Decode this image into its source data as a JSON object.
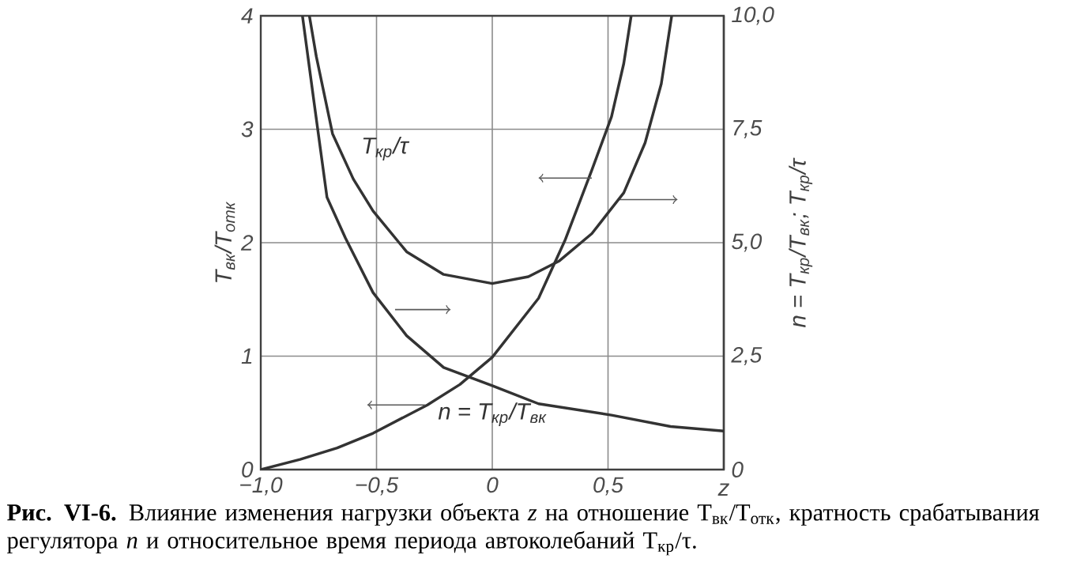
{
  "chart_data": {
    "type": "line",
    "xlabel": "z",
    "ylabel": "*T$_{вк}$/T$_{отк}$*",
    "y2label": "*n = T$_{кр}$/T$_{вк}$; T$_{кр}$/τ*",
    "xlim": [
      -1,
      1
    ],
    "xticks": [
      {
        "value": -1,
        "label": "−1,0"
      },
      {
        "value": -0.5,
        "label": "−0,5"
      },
      0,
      {
        "value": 0.5,
        "label": "0,5"
      },
      {
        "value": 1,
        "label": null
      }
    ],
    "ylim": [
      0,
      4
    ],
    "yticks": [
      0,
      1,
      2,
      3,
      4
    ],
    "y2lim": [
      0,
      10
    ],
    "y2ticks": [
      0,
      {
        "value": 2.5,
        "label": "2,5"
      },
      {
        "value": 5,
        "label": "5,0"
      },
      {
        "value": 7.5,
        "label": "7,5"
      },
      {
        "value": 10,
        "label": "10,0"
      }
    ],
    "grid": true,
    "marker": "none",
    "line_style": "solid",
    "series": [
      {
        "color": "#333333",
        "x": [
          -1,
          -0.83,
          -0.67,
          -0.515,
          -0.28,
          -0.14,
          0,
          0.2,
          0.316,
          0.43,
          0.515,
          0.568,
          0.6
        ],
        "values": [
          0,
          0.09,
          0.19,
          0.32,
          0.57,
          0.75,
          0.99,
          1.51,
          2.03,
          2.64,
          3.11,
          3.58,
          4
        ]
      },
      {
        "name": "T$_{кр}$/τ",
        "axis": "y2",
        "color": "#333333",
        "x": [
          -0.79,
          -0.76,
          -0.69,
          -0.6,
          -0.515,
          -0.37,
          -0.21,
          0,
          0.156,
          0.29,
          0.43,
          0.568,
          0.66,
          0.73,
          0.775
        ],
        "values": [
          10,
          9.1,
          7.4,
          6.4,
          5.7,
          4.8,
          4.3,
          4.1,
          4.25,
          4.6,
          5.2,
          6.1,
          7.2,
          8.5,
          10
        ]
      },
      {
        "name": "n = T$_{кр}$/T$_{вк}$",
        "axis": "y2",
        "color": "#333333",
        "x": [
          -0.82,
          -0.77,
          -0.714,
          -0.634,
          -0.515,
          -0.37,
          -0.21,
          0,
          0.2,
          0.515,
          0.77,
          1
        ],
        "values": [
          10,
          8.1,
          6,
          5.1,
          3.9,
          2.95,
          2.25,
          1.85,
          1.45,
          1.2,
          0.95,
          0.85
        ]
      }
    ],
    "annotations": [
      "**Рис. VI-6.** Влияние изменения нагрузки объекта *z* на отношение T$_{вк}$/T$_{отк}$, кратность срабатывания регулятора *n* и относительное время периода автоколебаний T$_{кр}$/τ."
    ]
  }
}
